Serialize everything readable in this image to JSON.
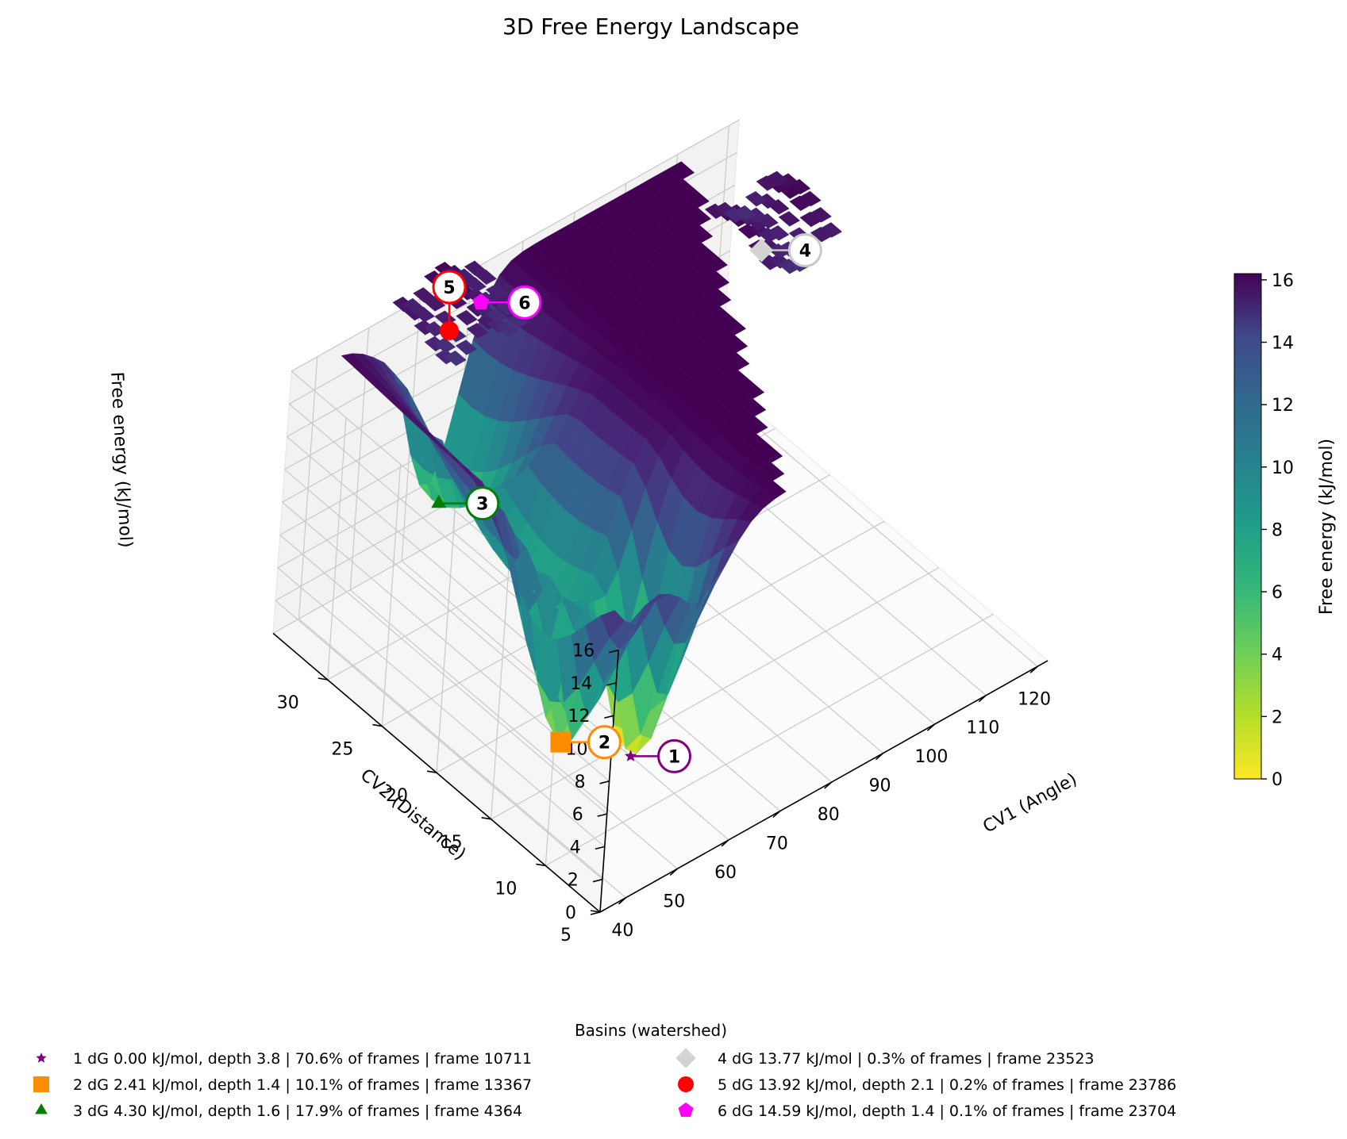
{
  "chart_data": {
    "type": "surface3d",
    "title": "3D Free Energy Landscape",
    "xlabel": "CV1 (Angle)",
    "ylabel": "CV2 (Distance)",
    "zlabel": "Free energy (kJ/mol)",
    "xlim": [
      35,
      122
    ],
    "ylim": [
      5,
      35
    ],
    "zlim": [
      0,
      16
    ],
    "x_ticks": [
      40,
      50,
      60,
      70,
      80,
      90,
      100,
      110,
      120
    ],
    "y_ticks": [
      5,
      10,
      15,
      20,
      25,
      30
    ],
    "z_ticks": [
      0,
      2,
      4,
      6,
      8,
      10,
      12,
      14,
      16
    ],
    "grid": true,
    "colormap": "viridis_r",
    "colorbar": {
      "label": "Free energy (kJ/mol)",
      "range": [
        0,
        16.2
      ],
      "ticks": [
        0,
        2,
        4,
        6,
        8,
        10,
        12,
        14,
        16
      ]
    },
    "basins": [
      {
        "id": "1",
        "marker": "star",
        "color": "#800080",
        "x": 60,
        "y": 14,
        "z": 0.0,
        "legend": "1  dG 0.00 kJ/mol, depth 3.8  |  70.6% of frames  |  frame 10711"
      },
      {
        "id": "2",
        "marker": "square",
        "color": "#ff8c00",
        "x": 48,
        "y": 15,
        "z": 2.41,
        "legend": "2  dG 2.41 kJ/mol, depth 1.4  |  10.1% of frames  |  frame 13367"
      },
      {
        "id": "3",
        "marker": "triangle",
        "color": "#008000",
        "x": 62,
        "y": 33,
        "z": 4.3,
        "legend": "3  dG 4.30 kJ/mol, depth 1.6  |  17.9% of frames  |  frame 4364"
      },
      {
        "id": "4",
        "marker": "diamond",
        "color": "#d3d3d3",
        "x": 112,
        "y": 28,
        "z": 13.77,
        "legend": "4  dG 13.77 kJ/mol  |  0.3% of frames  |  frame 23523"
      },
      {
        "id": "5",
        "marker": "circle",
        "color": "#ff0000",
        "x": 64,
        "y": 34,
        "z": 13.92,
        "legend": "5  dG 13.92 kJ/mol, depth 2.1  |  0.2% of frames  |  frame 23786"
      },
      {
        "id": "6",
        "marker": "pentagon",
        "color": "#ff00ff",
        "x": 70,
        "y": 34,
        "z": 14.59,
        "legend": "6  dG 14.59 kJ/mol, depth 1.4  |  0.1% of frames  |  frame 23704"
      }
    ],
    "legend": {
      "title": "Basins (watershed)",
      "placement": "bottom-center",
      "columns": 2
    }
  }
}
